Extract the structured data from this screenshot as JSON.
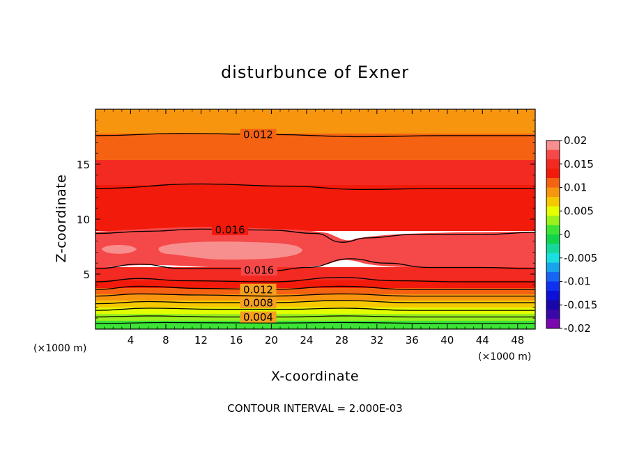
{
  "chart_data": {
    "type": "heatmap",
    "title": "disturbunce of Exner",
    "xlabel": "X-coordinate",
    "ylabel": "Z-coordinate",
    "x_unit_label": "(×1000 m)",
    "x_ticks": [
      4,
      8,
      12,
      16,
      20,
      24,
      28,
      32,
      36,
      40,
      44,
      48
    ],
    "y_ticks": [
      5,
      10,
      15
    ],
    "xlim": [
      0,
      50
    ],
    "ylim": [
      0,
      20
    ],
    "colorbar": {
      "ticks": [
        "0.02",
        "0.015",
        "0.01",
        "0.005",
        "0",
        "-0.005",
        "-0.01",
        "-0.015",
        "-0.02"
      ],
      "levels": [
        {
          "from": 0.018,
          "to": 0.02,
          "color": "#f88f8f"
        },
        {
          "from": 0.016,
          "to": 0.018,
          "color": "#f54848"
        },
        {
          "from": 0.014,
          "to": 0.016,
          "color": "#f22a22"
        },
        {
          "from": 0.012,
          "to": 0.014,
          "color": "#f21a0a"
        },
        {
          "from": 0.01,
          "to": 0.012,
          "color": "#f56312"
        },
        {
          "from": 0.008,
          "to": 0.01,
          "color": "#f7950f"
        },
        {
          "from": 0.006,
          "to": 0.008,
          "color": "#f5c800"
        },
        {
          "from": 0.004,
          "to": 0.006,
          "color": "#e4ff00"
        },
        {
          "from": 0.002,
          "to": 0.004,
          "color": "#9cf01c"
        },
        {
          "from": 0.0,
          "to": 0.002,
          "color": "#3ce436"
        },
        {
          "from": -0.002,
          "to": 0.0,
          "color": "#12d44a"
        },
        {
          "from": -0.004,
          "to": -0.002,
          "color": "#16d89c"
        },
        {
          "from": -0.006,
          "to": -0.004,
          "color": "#18e0e0"
        },
        {
          "from": -0.008,
          "to": -0.006,
          "color": "#16a4ec"
        },
        {
          "from": -0.01,
          "to": -0.008,
          "color": "#1666f4"
        },
        {
          "from": -0.012,
          "to": -0.01,
          "color": "#1030f0"
        },
        {
          "from": -0.014,
          "to": -0.012,
          "color": "#0c10d8"
        },
        {
          "from": -0.016,
          "to": -0.014,
          "color": "#1806a8"
        },
        {
          "from": -0.018,
          "to": -0.016,
          "color": "#3a08a8"
        },
        {
          "from": -0.02,
          "to": -0.018,
          "color": "#7a0ab0"
        }
      ]
    },
    "contour_lines": [
      {
        "value": 0.012,
        "label": "0.012",
        "z_by_x": [
          [
            0,
            17.6
          ],
          [
            10,
            17.8
          ],
          [
            20,
            17.7
          ],
          [
            30,
            17.5
          ],
          [
            40,
            17.6
          ],
          [
            50,
            17.6
          ]
        ]
      },
      {
        "value": 0.014,
        "label": "",
        "z_by_x": [
          [
            0,
            12.8
          ],
          [
            12,
            13.2
          ],
          [
            22,
            13.0
          ],
          [
            30,
            12.7
          ],
          [
            40,
            12.8
          ],
          [
            50,
            12.8
          ]
        ]
      },
      {
        "value": 0.016,
        "label": "0.016",
        "z_by_x": [
          [
            0,
            8.7
          ],
          [
            6,
            8.9
          ],
          [
            12,
            9.1
          ],
          [
            20,
            9.0
          ],
          [
            25,
            8.7
          ],
          [
            28,
            7.9
          ],
          [
            31,
            8.3
          ],
          [
            36,
            8.6
          ],
          [
            44,
            8.6
          ],
          [
            50,
            8.8
          ]
        ]
      },
      {
        "value": 0.016,
        "label": "0.016",
        "z_by_x": [
          [
            0,
            5.5
          ],
          [
            5,
            5.9
          ],
          [
            10,
            5.5
          ],
          [
            16,
            5.5
          ],
          [
            20,
            5.3
          ],
          [
            24,
            5.6
          ],
          [
            29,
            6.4
          ],
          [
            33,
            6.0
          ],
          [
            38,
            5.6
          ],
          [
            44,
            5.6
          ],
          [
            50,
            5.5
          ]
        ]
      },
      {
        "value": 0.014,
        "label": "",
        "z_by_x": [
          [
            0,
            4.3
          ],
          [
            5,
            4.6
          ],
          [
            10,
            4.4
          ],
          [
            20,
            4.3
          ],
          [
            28,
            4.7
          ],
          [
            34,
            4.4
          ],
          [
            42,
            4.3
          ],
          [
            50,
            4.3
          ]
        ]
      },
      {
        "value": 0.012,
        "label": "0.012",
        "z_by_x": [
          [
            0,
            3.6
          ],
          [
            5,
            3.9
          ],
          [
            12,
            3.7
          ],
          [
            20,
            3.6
          ],
          [
            28,
            3.9
          ],
          [
            36,
            3.6
          ],
          [
            50,
            3.6
          ]
        ]
      },
      {
        "value": 0.01,
        "label": "",
        "z_by_x": [
          [
            0,
            3.0
          ],
          [
            5,
            3.2
          ],
          [
            12,
            3.1
          ],
          [
            20,
            3.0
          ],
          [
            28,
            3.2
          ],
          [
            36,
            3.0
          ],
          [
            50,
            3.0
          ]
        ]
      },
      {
        "value": 0.008,
        "label": "0.008",
        "z_by_x": [
          [
            0,
            2.3
          ],
          [
            6,
            2.5
          ],
          [
            12,
            2.4
          ],
          [
            20,
            2.4
          ],
          [
            28,
            2.6
          ],
          [
            36,
            2.4
          ],
          [
            50,
            2.4
          ]
        ]
      },
      {
        "value": 0.006,
        "label": "",
        "z_by_x": [
          [
            0,
            1.7
          ],
          [
            6,
            1.9
          ],
          [
            14,
            1.8
          ],
          [
            22,
            1.8
          ],
          [
            28,
            1.9
          ],
          [
            36,
            1.7
          ],
          [
            50,
            1.7
          ]
        ]
      },
      {
        "value": 0.004,
        "label": "0.004",
        "z_by_x": [
          [
            0,
            1.1
          ],
          [
            6,
            1.2
          ],
          [
            14,
            1.1
          ],
          [
            22,
            1.1
          ],
          [
            28,
            1.2
          ],
          [
            36,
            1.1
          ],
          [
            50,
            1.1
          ]
        ]
      },
      {
        "value": 0.002,
        "label": "",
        "z_by_x": [
          [
            0,
            0.5
          ],
          [
            8,
            0.6
          ],
          [
            20,
            0.55
          ],
          [
            28,
            0.6
          ],
          [
            40,
            0.5
          ],
          [
            50,
            0.5
          ]
        ]
      }
    ],
    "contour_interval_text": "CONTOUR INTERVAL = 2.000E-03"
  }
}
